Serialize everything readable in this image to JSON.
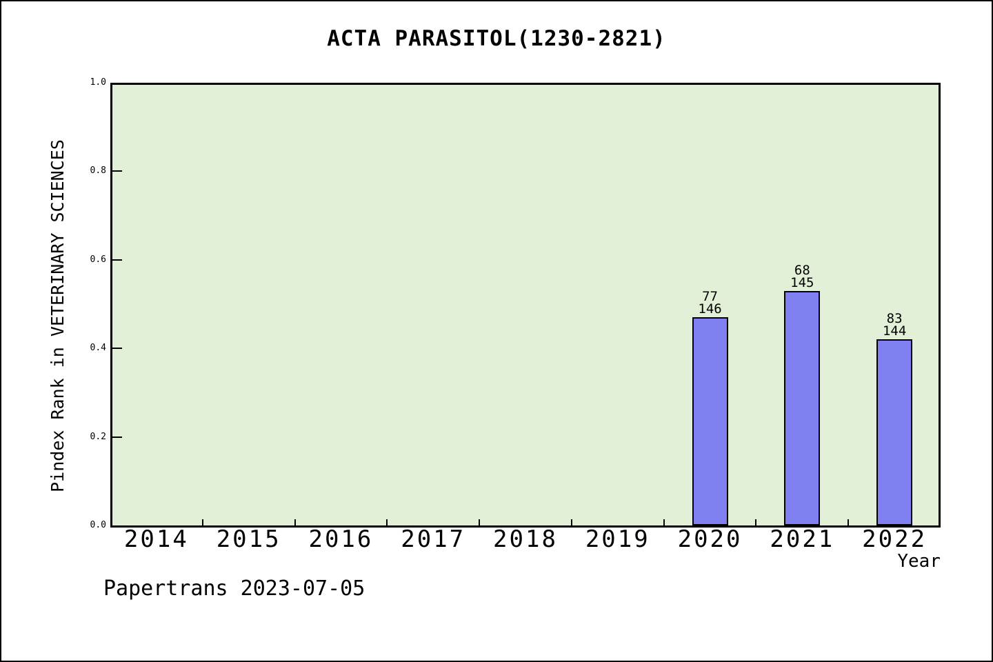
{
  "chart_data": {
    "type": "bar",
    "title": "ACTA PARASITOL(1230-2821)",
    "xlabel": "Year",
    "ylabel": "Pindex Rank in VETERINARY SCIENCES",
    "categories": [
      "2014",
      "2015",
      "2016",
      "2017",
      "2018",
      "2019",
      "2020",
      "2021",
      "2022"
    ],
    "values": [
      null,
      null,
      null,
      null,
      null,
      null,
      0.47,
      0.53,
      0.42
    ],
    "bars": [
      {
        "category": "2020",
        "value": 0.47,
        "rank": "77",
        "total": "146"
      },
      {
        "category": "2021",
        "value": 0.53,
        "rank": "68",
        "total": "145"
      },
      {
        "category": "2022",
        "value": 0.42,
        "rank": "83",
        "total": "144"
      }
    ],
    "ylim": [
      0.0,
      1.0
    ],
    "yticks": [
      0.0,
      0.2,
      0.4,
      0.6,
      0.8,
      1.0
    ],
    "grid": false,
    "legend": false,
    "colors": {
      "plot_background": "#e3f0d8",
      "bar_fill": "#8080f0",
      "axis": "#000000",
      "text": "#000000"
    }
  },
  "footer": {
    "text": "Papertrans 2023-07-05"
  }
}
